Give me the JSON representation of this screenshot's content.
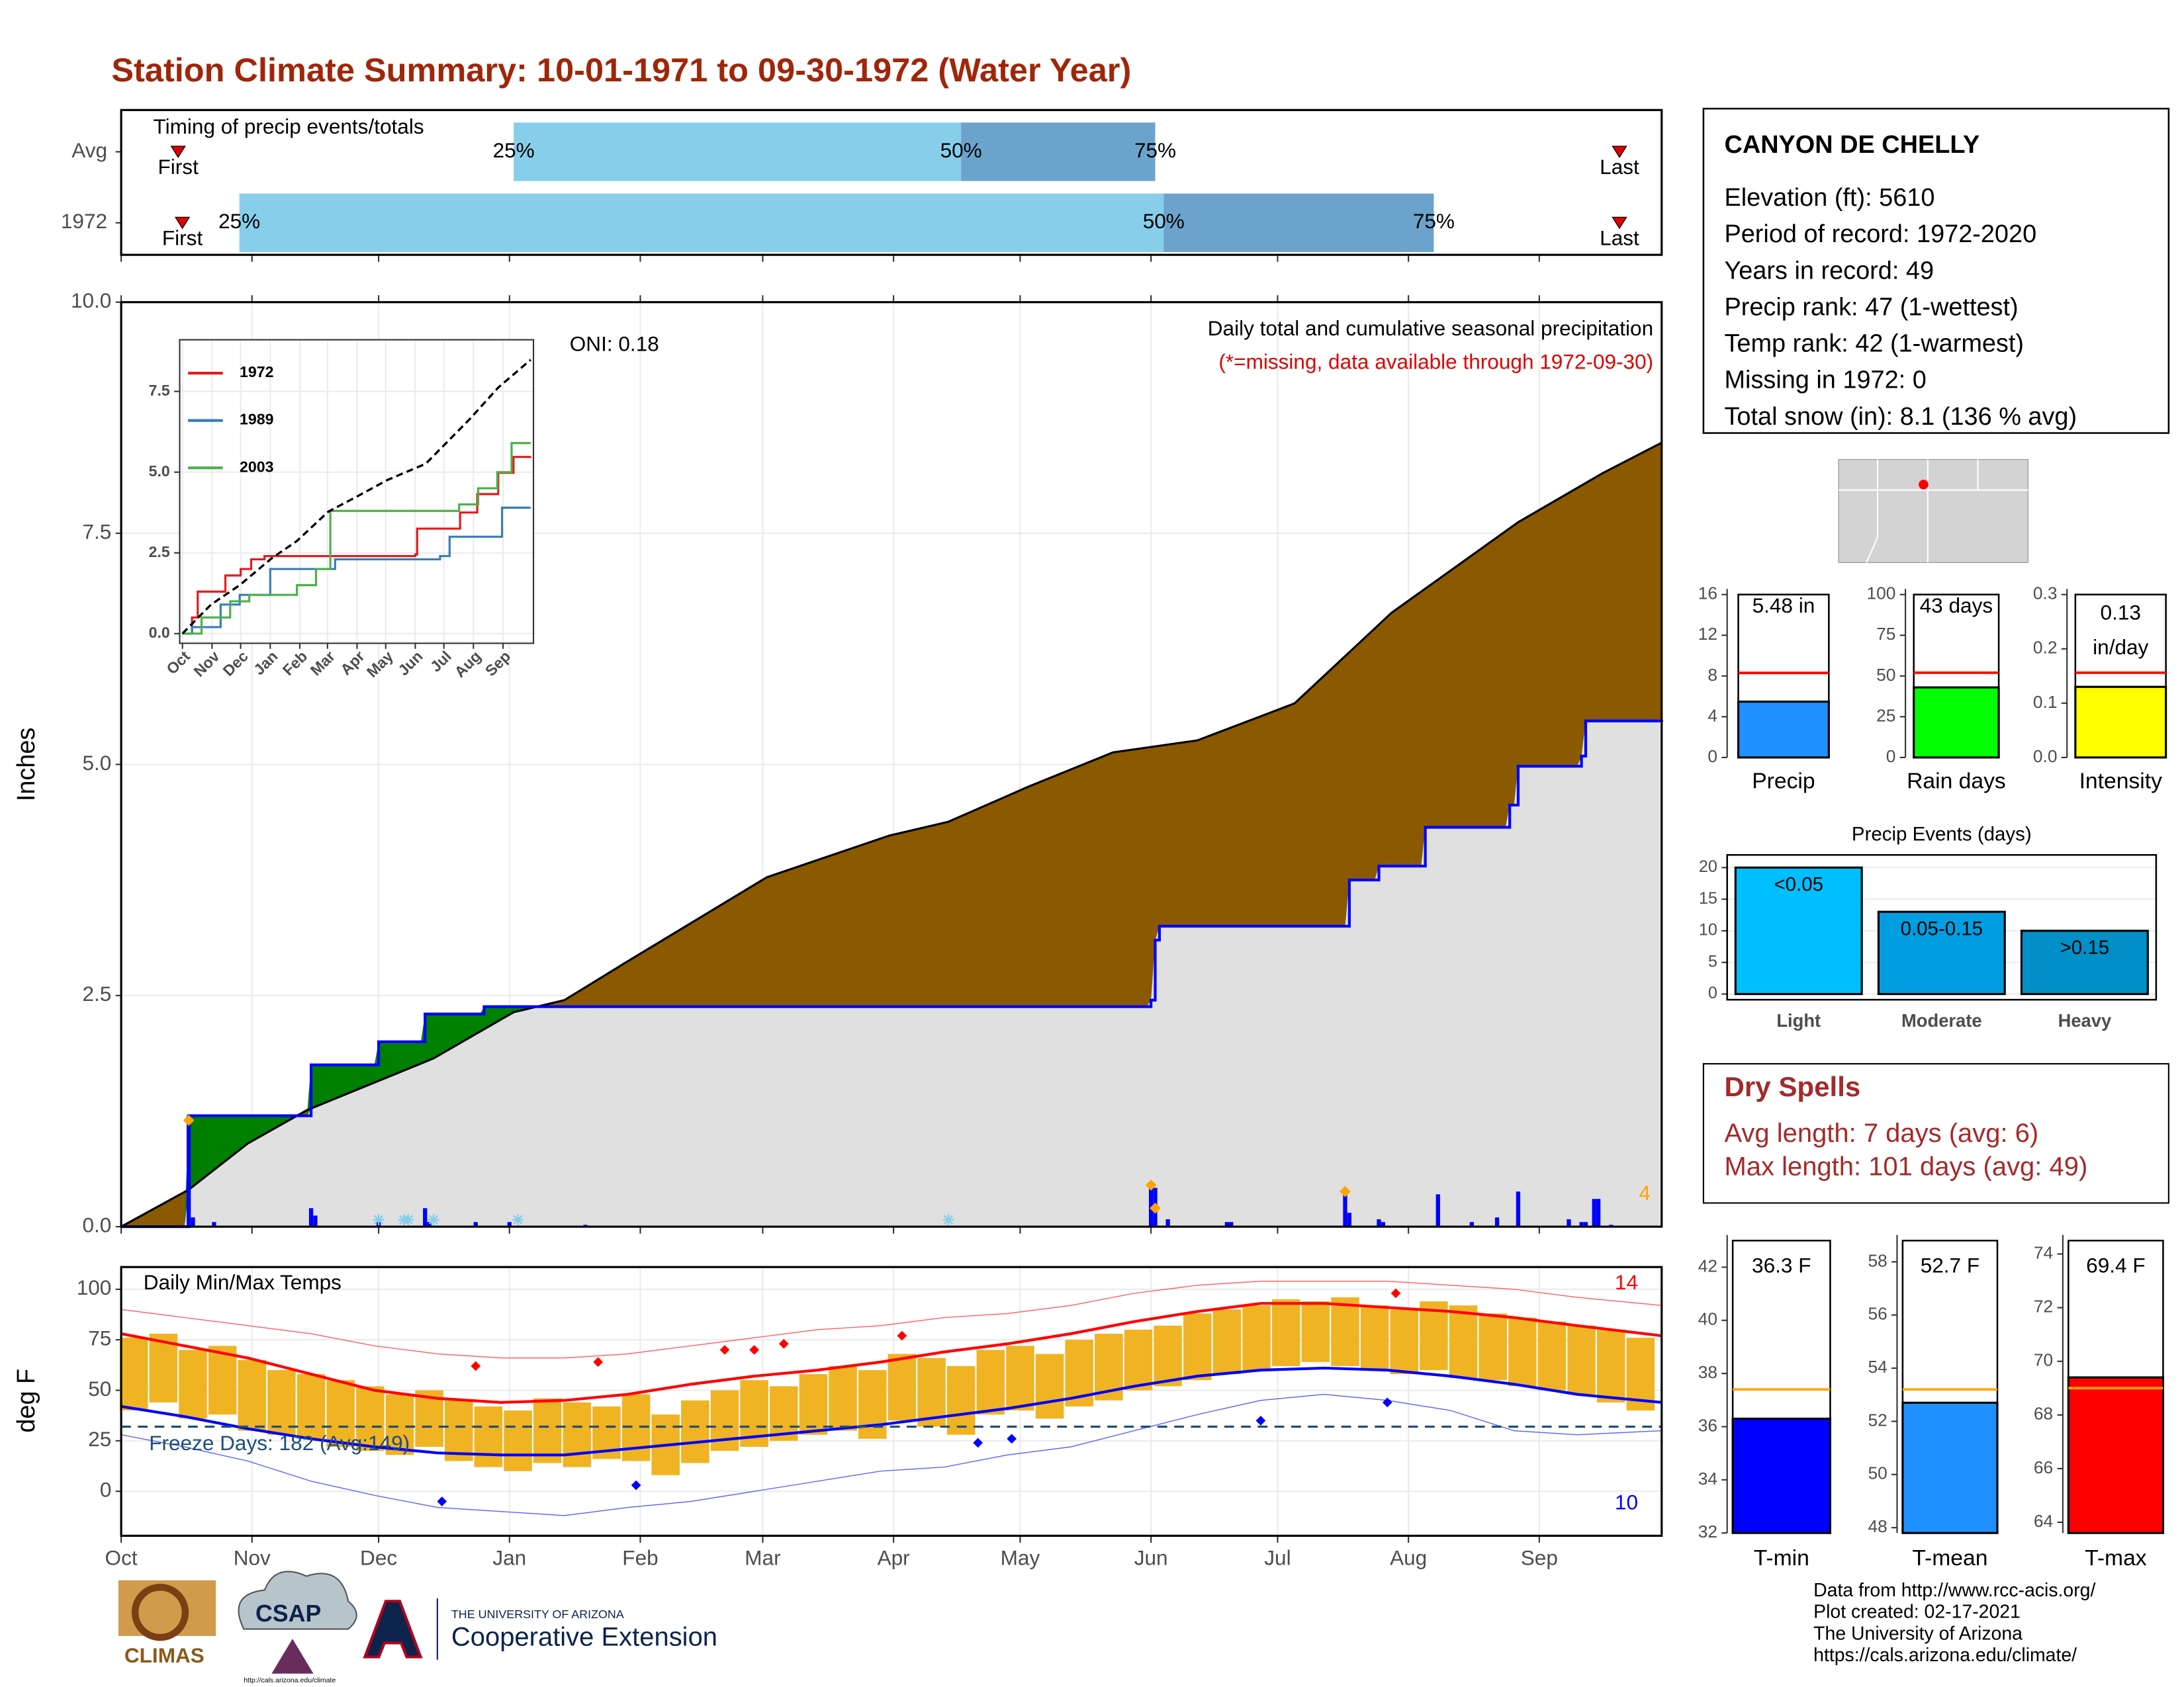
{
  "title": "Station Climate Summary: 10-01-1971 to 09-30-1972 (Water Year)",
  "info": {
    "title": "CANYON DE CHELLY",
    "lines": [
      "Elevation (ft): 5610",
      "Period of record: 1972-2020",
      "Years in record: 49",
      "Precip rank: 47 (1-wettest)",
      "Temp rank: 42 (1-warmest)",
      "Missing in 1972: 0",
      "Total snow (in): 8.1 (136 % avg)"
    ]
  },
  "dry_spells": {
    "title": "Dry Spells",
    "lines": [
      "Avg length: 7 days (avg: 6)",
      "Max length: 101 days (avg: 49)"
    ]
  },
  "footer": [
    "Data from http://www.rcc-acis.org/",
    "Plot created: 02-17-2021",
    "The University of Arizona",
    "https://cals.arizona.edu/climate/"
  ],
  "logos": {
    "climas": "CLIMAS",
    "csap": "CSAP",
    "csap_url": "http://cals.arizona.edu/climate",
    "ua": "THE UNIVERSITY OF ARIZONA",
    "extension": "Cooperative Extension"
  },
  "chart_data": [
    {
      "type": "timing",
      "title": "Timing of precip events/totals",
      "xlim": [
        0,
        365
      ],
      "marker_labels": {
        "first": "First",
        "p25": "25%",
        "p50": "50%",
        "p75": "75%",
        "last": "Last"
      },
      "colors": {
        "early": "#87ceeb",
        "late": "#6ba3cc",
        "marker": "#e00000"
      },
      "rows": [
        {
          "label": "Avg",
          "first": 13.5,
          "p25": 93,
          "p50": 199,
          "p75": 245,
          "last": 355
        },
        {
          "label": "1972",
          "first": 14.5,
          "p25": 28,
          "p50": 247,
          "p75": 311,
          "last": 355
        }
      ]
    },
    {
      "type": "area",
      "y_label": "Inches",
      "xlim": [
        0,
        365
      ],
      "ylim": [
        0,
        10
      ],
      "yticks": [
        {
          "value": 0,
          "label": "0.0"
        },
        {
          "value": 2.5,
          "label": "2.5"
        },
        {
          "value": 5,
          "label": "5.0"
        },
        {
          "value": 7.5,
          "label": "7.5"
        },
        {
          "value": 10,
          "label": "10.0"
        }
      ],
      "grid": true,
      "annotations": [
        {
          "text": "Daily total and cumulative seasonal precipitation",
          "color": "#000000"
        },
        {
          "text": "(*=missing, data available through 1972-09-30)",
          "color": "#e00000"
        },
        {
          "text": "4",
          "color": "#ffa500"
        }
      ],
      "oni": "ONI: 0.18",
      "colors": {
        "deficit": "#8b5a00",
        "surplus": "#008000",
        "base": "#e0e0e0"
      },
      "observed": {
        "color": "#0000ff",
        "x": [
          0,
          16,
          45,
          61,
          72,
          86,
          244,
          245,
          246,
          291,
          298,
          309,
          329,
          331,
          346,
          347,
          365
        ],
        "values": [
          0,
          1.2,
          1.75,
          2.0,
          2.3,
          2.38,
          2.45,
          3.1,
          3.25,
          3.75,
          3.9,
          4.32,
          4.56,
          4.98,
          5.09,
          5.47,
          5.48
        ]
      },
      "average": {
        "color": "#000000",
        "x": [
          0,
          16,
          30,
          44,
          74,
          93,
          105,
          120,
          153,
          182,
          196,
          215,
          235,
          255,
          278,
          301,
          331,
          351,
          365
        ],
        "values": [
          0,
          0.4,
          0.9,
          1.26,
          1.82,
          2.32,
          2.45,
          2.87,
          3.78,
          4.23,
          4.38,
          4.76,
          5.13,
          5.26,
          5.66,
          6.64,
          7.62,
          8.15,
          8.48
        ]
      },
      "daily": {
        "color": "#0000ff",
        "x": [
          16,
          17,
          22,
          45,
          46,
          61,
          72,
          73,
          84,
          92,
          110,
          244,
          245,
          248,
          262,
          263,
          290,
          291,
          298,
          299,
          312,
          320,
          326,
          331,
          343,
          346,
          347,
          349,
          350,
          353
        ],
        "values": [
          1.2,
          0.1,
          0.05,
          0.2,
          0.12,
          0.08,
          0.2,
          0.05,
          0.05,
          0.05,
          0.02,
          0.45,
          0.42,
          0.08,
          0.05,
          0.05,
          0.35,
          0.15,
          0.08,
          0.05,
          0.35,
          0.05,
          0.1,
          0.38,
          0.08,
          0.05,
          0.05,
          0.3,
          0.3,
          0.02
        ]
      },
      "records": {
        "color": "#ffa500",
        "x": [
          16,
          244,
          245,
          290
        ],
        "values": [
          1.15,
          0.45,
          0.2,
          0.38
        ]
      },
      "snow_days": {
        "color": "#87ceeb",
        "x": [
          61,
          67,
          68,
          74,
          94,
          196
        ]
      }
    },
    {
      "type": "line",
      "xlim": [
        0,
        365
      ],
      "ylim": [
        -0.3,
        9.1
      ],
      "yticks": [
        {
          "value": 0,
          "label": "0.0"
        },
        {
          "value": 2.5,
          "label": "2.5"
        },
        {
          "value": 5,
          "label": "5.0"
        },
        {
          "value": 7.5,
          "label": "7.5"
        }
      ],
      "xticks": [
        {
          "value": 0,
          "label": "Oct"
        },
        {
          "value": 31,
          "label": "Nov"
        },
        {
          "value": 61,
          "label": "Dec"
        },
        {
          "value": 92,
          "label": "Jan"
        },
        {
          "value": 123,
          "label": "Feb"
        },
        {
          "value": 152,
          "label": "Mar"
        },
        {
          "value": 183,
          "label": "Apr"
        },
        {
          "value": 213,
          "label": "May"
        },
        {
          "value": 244,
          "label": "Jun"
        },
        {
          "value": 274,
          "label": "Jul"
        },
        {
          "value": 305,
          "label": "Aug"
        },
        {
          "value": 336,
          "label": "Sep"
        }
      ],
      "series": [
        {
          "name": "1972",
          "color": "#e41a1c",
          "x": [
            0,
            10,
            16,
            45,
            61,
            72,
            86,
            120,
            244,
            246,
            291,
            309,
            331,
            347,
            365
          ],
          "values": [
            0,
            0.5,
            1.3,
            1.8,
            2.0,
            2.3,
            2.4,
            2.4,
            2.45,
            3.25,
            3.75,
            4.32,
            4.98,
            5.47,
            5.48
          ]
        },
        {
          "name": "1989",
          "color": "#377eb8",
          "x": [
            0,
            10,
            40,
            60,
            92,
            160,
            270,
            280,
            335,
            365
          ],
          "values": [
            0,
            0.2,
            0.9,
            1.2,
            2.0,
            2.3,
            2.4,
            3.0,
            3.9,
            3.9
          ]
        },
        {
          "name": "2003",
          "color": "#4daf4a",
          "x": [
            0,
            20,
            50,
            70,
            120,
            140,
            155,
            250,
            290,
            310,
            330,
            345,
            365
          ],
          "values": [
            0,
            0.5,
            1.0,
            1.2,
            1.5,
            2.0,
            3.8,
            3.8,
            4.0,
            4.5,
            5.0,
            5.9,
            5.9
          ]
        }
      ],
      "average": {
        "color": "#000000",
        "x": [
          0,
          30,
          60,
          93,
          120,
          153,
          182,
          215,
          255,
          301,
          331,
          365
        ],
        "values": [
          0,
          0.9,
          1.5,
          2.32,
          2.87,
          3.78,
          4.23,
          4.76,
          5.26,
          6.64,
          7.62,
          8.48
        ]
      }
    },
    {
      "type": "temperature",
      "title": "Daily Min/Max Temps",
      "y_label": "deg F",
      "xlim": [
        0,
        365
      ],
      "ylim": [
        -22,
        111
      ],
      "yticks": [
        0,
        25,
        50,
        75,
        100
      ],
      "xticks": [
        {
          "value": 0,
          "label": "Oct"
        },
        {
          "value": 31,
          "label": "Nov"
        },
        {
          "value": 61,
          "label": "Dec"
        },
        {
          "value": 92,
          "label": "Jan"
        },
        {
          "value": 123,
          "label": "Feb"
        },
        {
          "value": 152,
          "label": "Mar"
        },
        {
          "value": 183,
          "label": "Apr"
        },
        {
          "value": 213,
          "label": "May"
        },
        {
          "value": 244,
          "label": "Jun"
        },
        {
          "value": 274,
          "label": "Jul"
        },
        {
          "value": 305,
          "label": "Aug"
        },
        {
          "value": 336,
          "label": "Sep"
        }
      ],
      "daily": {
        "color": "#f0b323",
        "x": [
          3,
          10,
          17,
          24,
          31,
          38,
          45,
          52,
          59,
          66,
          73,
          80,
          87,
          94,
          101,
          108,
          115,
          122,
          129,
          136,
          143,
          150,
          157,
          164,
          171,
          178,
          185,
          192,
          199,
          206,
          213,
          220,
          227,
          234,
          241,
          248,
          255,
          262,
          269,
          276,
          283,
          290,
          297,
          304,
          311,
          318,
          325,
          332,
          339,
          346,
          353,
          360
        ],
        "lows": [
          40,
          44,
          36,
          38,
          30,
          28,
          26,
          22,
          20,
          18,
          22,
          15,
          12,
          10,
          14,
          12,
          16,
          15,
          8,
          14,
          20,
          22,
          25,
          28,
          30,
          26,
          35,
          32,
          28,
          38,
          40,
          36,
          42,
          45,
          50,
          52,
          55,
          58,
          60,
          62,
          64,
          62,
          60,
          58,
          60,
          56,
          55,
          52,
          50,
          48,
          44,
          40
        ],
        "highs": [
          76,
          78,
          70,
          72,
          65,
          60,
          58,
          55,
          52,
          48,
          50,
          45,
          42,
          40,
          46,
          44,
          42,
          48,
          38,
          45,
          50,
          55,
          52,
          58,
          62,
          60,
          68,
          66,
          62,
          70,
          72,
          68,
          75,
          78,
          80,
          82,
          88,
          90,
          92,
          95,
          94,
          96,
          92,
          90,
          94,
          92,
          88,
          86,
          84,
          82,
          80,
          76
        ]
      },
      "normal_max": {
        "color": "#ff0000",
        "x": [
          0,
          15,
          30,
          45,
          60,
          75,
          90,
          105,
          120,
          135,
          150,
          165,
          180,
          195,
          210,
          225,
          240,
          255,
          270,
          285,
          300,
          315,
          330,
          345,
          365
        ],
        "values": [
          78,
          72,
          66,
          58,
          50,
          46,
          44,
          45,
          48,
          53,
          57,
          60,
          64,
          69,
          73,
          78,
          84,
          89,
          93,
          93,
          91,
          89,
          86,
          82,
          77
        ]
      },
      "normal_min": {
        "color": "#0000ff",
        "x": [
          0,
          15,
          30,
          45,
          60,
          75,
          90,
          105,
          120,
          135,
          150,
          165,
          180,
          195,
          210,
          225,
          240,
          255,
          270,
          285,
          300,
          315,
          330,
          345,
          365
        ],
        "values": [
          42,
          37,
          31,
          26,
          22,
          19,
          18,
          18,
          21,
          24,
          27,
          30,
          33,
          37,
          41,
          46,
          52,
          57,
          60,
          61,
          60,
          57,
          53,
          48,
          44
        ]
      },
      "record_max": {
        "color": "#ff6666",
        "x": [
          0,
          15,
          30,
          45,
          60,
          75,
          90,
          105,
          120,
          135,
          150,
          165,
          180,
          195,
          210,
          225,
          240,
          255,
          270,
          285,
          300,
          315,
          330,
          345,
          365
        ],
        "values": [
          90,
          86,
          82,
          78,
          72,
          68,
          66,
          66,
          68,
          72,
          76,
          80,
          82,
          86,
          88,
          92,
          98,
          102,
          104,
          104,
          104,
          102,
          100,
          96,
          92
        ]
      },
      "record_min": {
        "color": "#6666ff",
        "x": [
          0,
          15,
          30,
          45,
          60,
          75,
          90,
          105,
          120,
          135,
          150,
          165,
          180,
          195,
          210,
          225,
          240,
          255,
          270,
          285,
          300,
          315,
          330,
          345,
          365
        ],
        "values": [
          28,
          22,
          15,
          5,
          -2,
          -8,
          -10,
          -12,
          -8,
          -5,
          0,
          5,
          10,
          12,
          18,
          22,
          30,
          38,
          45,
          48,
          45,
          40,
          30,
          28,
          30
        ]
      },
      "record_highs": {
        "color": "#ff0000",
        "x": [
          84,
          113,
          143,
          150,
          157,
          185,
          302
        ],
        "values": [
          62,
          64,
          70,
          70,
          73,
          77,
          98
        ]
      },
      "record_lows": {
        "color": "#0000ff",
        "x": [
          76,
          122,
          203,
          211,
          270,
          300
        ],
        "values": [
          -5,
          3,
          24,
          26,
          35,
          44
        ]
      },
      "freeze": {
        "value": 32,
        "label": "Freeze Days: 182 (Avg:149)",
        "color": "#1f4e79"
      },
      "annotations": [
        {
          "text": "14",
          "color": "#ff0000"
        },
        {
          "text": "10",
          "color": "#0000ff"
        }
      ]
    },
    {
      "type": "bar",
      "title": "Precip",
      "value": 5.48,
      "value_labels": [
        "5.48 in"
      ],
      "average": 8.3,
      "color": "#1e90ff",
      "average_color": "#ff0000",
      "ylim": [
        0,
        16
      ],
      "yticks": [
        0,
        4,
        8,
        12,
        16
      ]
    },
    {
      "type": "bar",
      "title": "Rain days",
      "value": 43,
      "value_labels": [
        "43 days"
      ],
      "average": 52,
      "color": "#00ff00",
      "average_color": "#ff0000",
      "ylim": [
        0,
        100
      ],
      "yticks": [
        0,
        25,
        50,
        75,
        100
      ]
    },
    {
      "type": "bar",
      "title": "Intensity",
      "value": 0.13,
      "value_labels": [
        "0.13",
        "in/day"
      ],
      "average": 0.156,
      "color": "#ffff00",
      "average_color": "#ff0000",
      "ylim": [
        0,
        0.3
      ],
      "yticks": [
        {
          "value": 0,
          "label": "0.0"
        },
        {
          "value": 0.1,
          "label": "0.1"
        },
        {
          "value": 0.2,
          "label": "0.2"
        },
        {
          "value": 0.3,
          "label": "0.3"
        }
      ]
    },
    {
      "type": "events",
      "title": "Precip Events (days)",
      "categories": [
        "Light",
        "Moderate",
        "Heavy"
      ],
      "values": [
        20,
        13,
        10
      ],
      "bin_labels": [
        "<0.05",
        "0.05-0.15",
        ">0.15"
      ],
      "colors": [
        "#00bfff",
        "#009ee0",
        "#0090c8"
      ],
      "ylim": [
        -0.9,
        22
      ],
      "yticks": [
        0,
        5,
        10,
        15,
        20
      ],
      "grid": true
    },
    {
      "type": "bar",
      "title": "T-min",
      "value": 36.3,
      "value_labels": [
        "36.3 F"
      ],
      "average": 37.4,
      "color": "#0000ff",
      "average_color": "#ffa500",
      "ylim": [
        32,
        43
      ],
      "yticks": [
        32,
        34,
        36,
        38,
        40,
        42
      ]
    },
    {
      "type": "bar",
      "title": "T-mean",
      "value": 52.7,
      "value_labels": [
        "52.7 F"
      ],
      "average": 53.2,
      "color": "#1e90ff",
      "average_color": "#ffa500",
      "ylim": [
        47.8,
        58.8
      ],
      "yticks": [
        48,
        50,
        52,
        54,
        56,
        58
      ]
    },
    {
      "type": "bar",
      "title": "T-max",
      "value": 69.4,
      "value_labels": [
        "69.4 F"
      ],
      "average": 69.0,
      "color": "#ff0000",
      "average_color": "#ffa500",
      "ylim": [
        63.6,
        74.5
      ],
      "yticks": [
        64,
        66,
        68,
        70,
        72,
        74
      ]
    }
  ]
}
